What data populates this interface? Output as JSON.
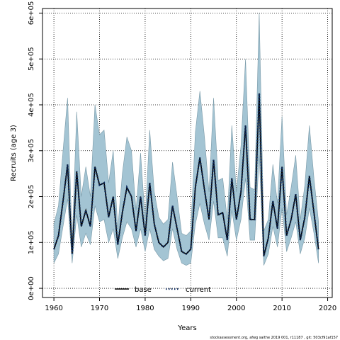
{
  "chart_data": {
    "type": "line",
    "title": "",
    "xlabel": "Years",
    "ylabel": "Recruits (age 3)",
    "xlim": [
      1957.5,
      2021
    ],
    "ylim": [
      -20000,
      610000
    ],
    "x_ticks": [
      1960,
      1970,
      1980,
      1990,
      2000,
      2010,
      2020
    ],
    "x_tick_labels": [
      "1960",
      "1970",
      "1980",
      "1990",
      "2000",
      "2010",
      "2020"
    ],
    "y_ticks": [
      0,
      100000,
      200000,
      300000,
      400000,
      500000,
      600000
    ],
    "y_tick_labels": [
      "0e+00",
      "1e+05",
      "2e+05",
      "3e+05",
      "4e+05",
      "5e+05",
      "6e+05"
    ],
    "grid": true,
    "legend_position": "bottom-center",
    "band_color": "#a3c4d3",
    "years": [
      1960,
      1961,
      1962,
      1963,
      1964,
      1965,
      1966,
      1967,
      1968,
      1969,
      1970,
      1971,
      1972,
      1973,
      1974,
      1975,
      1976,
      1977,
      1978,
      1979,
      1980,
      1981,
      1982,
      1983,
      1984,
      1985,
      1986,
      1987,
      1988,
      1989,
      1990,
      1991,
      1992,
      1993,
      1994,
      1995,
      1996,
      1997,
      1998,
      1999,
      2000,
      2001,
      2002,
      2003,
      2004,
      2005,
      2006,
      2007,
      2008,
      2009,
      2010,
      2011,
      2012,
      2013,
      2014,
      2015,
      2016,
      2017,
      2018
    ],
    "band_upper": [
      140000,
      180000,
      300000,
      415000,
      100000,
      385000,
      200000,
      265000,
      200000,
      400000,
      335000,
      345000,
      230000,
      300000,
      130000,
      250000,
      330000,
      300000,
      170000,
      295000,
      150000,
      345000,
      210000,
      155000,
      140000,
      150000,
      275000,
      200000,
      120000,
      115000,
      125000,
      340000,
      430000,
      330000,
      210000,
      415000,
      235000,
      240000,
      150000,
      355000,
      210000,
      310000,
      500000,
      220000,
      215000,
      600000,
      125000,
      150000,
      270000,
      185000,
      375000,
      160000,
      220000,
      290000,
      150000,
      225000,
      355000,
      240000,
      145000
    ],
    "band_lower": [
      55000,
      75000,
      135000,
      195000,
      55000,
      160000,
      90000,
      120000,
      95000,
      180000,
      145000,
      150000,
      100000,
      130000,
      65000,
      110000,
      145000,
      130000,
      90000,
      130000,
      80000,
      130000,
      85000,
      70000,
      60000,
      65000,
      130000,
      85000,
      55000,
      50000,
      55000,
      140000,
      185000,
      140000,
      105000,
      190000,
      110000,
      110000,
      70000,
      170000,
      105000,
      150000,
      240000,
      105000,
      105000,
      290000,
      50000,
      75000,
      135000,
      90000,
      175000,
      80000,
      110000,
      145000,
      75000,
      110000,
      175000,
      120000,
      55000
    ],
    "series": [
      {
        "name": "base",
        "color": "#000000",
        "style": "solid",
        "values": [
          85000,
          115000,
          190000,
          270000,
          75000,
          255000,
          135000,
          170000,
          135000,
          265000,
          225000,
          230000,
          155000,
          200000,
          95000,
          165000,
          220000,
          200000,
          125000,
          200000,
          115000,
          230000,
          140000,
          100000,
          90000,
          100000,
          180000,
          130000,
          80000,
          75000,
          85000,
          220000,
          285000,
          215000,
          150000,
          280000,
          160000,
          165000,
          105000,
          240000,
          150000,
          210000,
          355000,
          150000,
          150000,
          425000,
          70000,
          110000,
          190000,
          130000,
          265000,
          115000,
          150000,
          205000,
          105000,
          155000,
          245000,
          165000,
          85000
        ]
      },
      {
        "name": "current",
        "color": "#0d2a5c",
        "style": "dotted",
        "values": [
          85000,
          115000,
          190000,
          270000,
          75000,
          255000,
          135000,
          170000,
          135000,
          265000,
          225000,
          230000,
          155000,
          200000,
          95000,
          165000,
          220000,
          200000,
          125000,
          200000,
          115000,
          230000,
          140000,
          100000,
          90000,
          100000,
          180000,
          130000,
          80000,
          75000,
          85000,
          220000,
          285000,
          215000,
          150000,
          280000,
          160000,
          165000,
          105000,
          240000,
          150000,
          210000,
          355000,
          150000,
          150000,
          425000,
          70000,
          110000,
          190000,
          130000,
          265000,
          115000,
          150000,
          205000,
          105000,
          155000,
          245000,
          165000,
          85000
        ]
      }
    ]
  },
  "footer": "stockassessment.org, afwg saithe 2019 001, r11187 , git: 503cf91af157"
}
